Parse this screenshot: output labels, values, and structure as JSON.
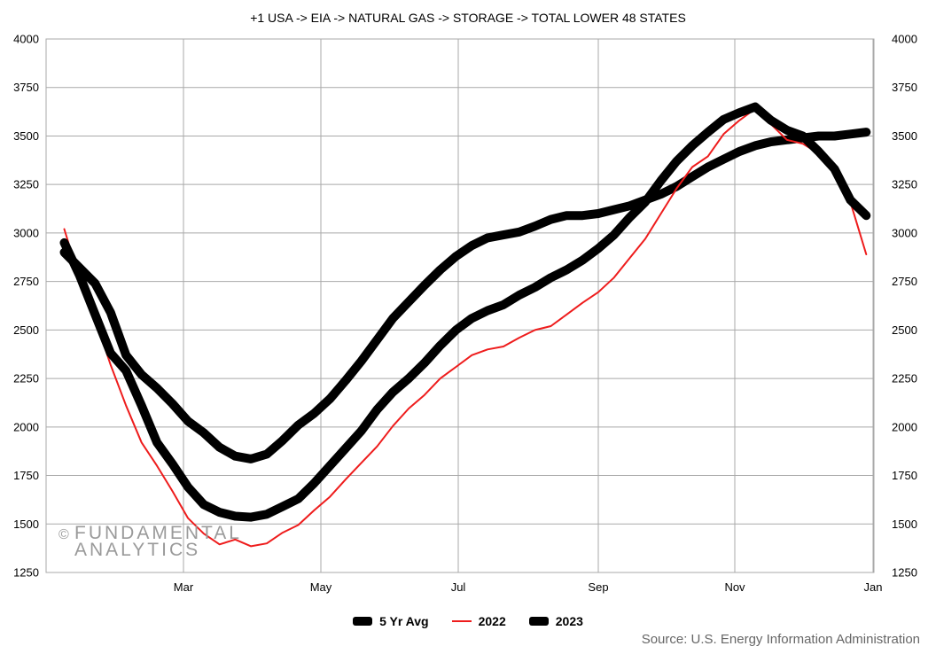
{
  "chart_data": {
    "type": "line",
    "title": "+1 USA -> EIA -> NATURAL GAS -> STORAGE -> TOTAL LOWER 48 STATES",
    "xlabel": "",
    "ylabel": "",
    "x_ticks": [
      "Mar",
      "May",
      "Jul",
      "Sep",
      "Nov",
      "Jan"
    ],
    "ylim": [
      1250,
      4000
    ],
    "y_ticks": [
      1250,
      1500,
      1750,
      2000,
      2250,
      2500,
      2750,
      3000,
      3250,
      3500,
      3750,
      4000
    ],
    "grid": true,
    "legend_position": "bottom",
    "series": [
      {
        "name": "5 Yr Avg",
        "color": "#000000",
        "style": "thick",
        "x": [
          "2023-01-06",
          "2023-01-13",
          "2023-01-20",
          "2023-01-27",
          "2023-02-03",
          "2023-02-10",
          "2023-02-17",
          "2023-02-24",
          "2023-03-03",
          "2023-03-10",
          "2023-03-17",
          "2023-03-24",
          "2023-03-31",
          "2023-04-07",
          "2023-04-14",
          "2023-04-21",
          "2023-04-28",
          "2023-05-05",
          "2023-05-12",
          "2023-05-19",
          "2023-05-26",
          "2023-06-02",
          "2023-06-09",
          "2023-06-16",
          "2023-06-23",
          "2023-06-30",
          "2023-07-07",
          "2023-07-14",
          "2023-07-21",
          "2023-07-28",
          "2023-08-04",
          "2023-08-11",
          "2023-08-18",
          "2023-08-25",
          "2023-09-01",
          "2023-09-08",
          "2023-09-15",
          "2023-09-22",
          "2023-09-29",
          "2023-10-06",
          "2023-10-13",
          "2023-10-20",
          "2023-10-27",
          "2023-11-03",
          "2023-11-10",
          "2023-11-17",
          "2023-11-24",
          "2023-12-01",
          "2023-12-08",
          "2023-12-15",
          "2023-12-22",
          "2023-12-29"
        ],
        "values": [
          2900,
          2820,
          2740,
          2590,
          2370,
          2270,
          2200,
          2120,
          2030,
          1970,
          1895,
          1850,
          1835,
          1860,
          1930,
          2010,
          2070,
          2145,
          2240,
          2340,
          2450,
          2560,
          2645,
          2730,
          2810,
          2880,
          2935,
          2975,
          2990,
          3005,
          3035,
          3070,
          3090,
          3090,
          3100,
          3120,
          3140,
          3170,
          3200,
          3240,
          3290,
          3340,
          3380,
          3420,
          3450,
          3470,
          3480,
          3490,
          3500,
          3500,
          3510,
          3520
        ]
      },
      {
        "name": "2022",
        "color": "#ee1c1c",
        "style": "thin",
        "x": [
          "2023-01-06",
          "2023-01-13",
          "2023-01-20",
          "2023-01-27",
          "2023-02-03",
          "2023-02-10",
          "2023-02-17",
          "2023-02-24",
          "2023-03-03",
          "2023-03-10",
          "2023-03-17",
          "2023-03-24",
          "2023-03-31",
          "2023-04-07",
          "2023-04-14",
          "2023-04-21",
          "2023-04-28",
          "2023-05-05",
          "2023-05-12",
          "2023-05-19",
          "2023-05-26",
          "2023-06-02",
          "2023-06-09",
          "2023-06-16",
          "2023-06-23",
          "2023-06-30",
          "2023-07-07",
          "2023-07-14",
          "2023-07-21",
          "2023-07-28",
          "2023-08-04",
          "2023-08-11",
          "2023-08-18",
          "2023-08-25",
          "2023-09-01",
          "2023-09-08",
          "2023-09-15",
          "2023-09-22",
          "2023-09-29",
          "2023-10-06",
          "2023-10-13",
          "2023-10-20",
          "2023-10-27",
          "2023-11-03",
          "2023-11-10",
          "2023-11-17",
          "2023-11-24",
          "2023-12-01",
          "2023-12-08",
          "2023-12-15",
          "2023-12-22",
          "2023-12-29"
        ],
        "values": [
          3020,
          2760,
          2560,
          2320,
          2110,
          1920,
          1800,
          1670,
          1530,
          1450,
          1395,
          1420,
          1385,
          1400,
          1455,
          1495,
          1570,
          1640,
          1730,
          1815,
          1900,
          2005,
          2095,
          2165,
          2250,
          2310,
          2370,
          2400,
          2415,
          2460,
          2500,
          2520,
          2580,
          2640,
          2695,
          2770,
          2870,
          2970,
          3100,
          3230,
          3340,
          3395,
          3510,
          3580,
          3640,
          3560,
          3480,
          3460,
          3410,
          3320,
          3160,
          2890
        ]
      },
      {
        "name": "2023",
        "color": "#000000",
        "style": "thick",
        "x": [
          "2023-01-06",
          "2023-01-13",
          "2023-01-20",
          "2023-01-27",
          "2023-02-03",
          "2023-02-10",
          "2023-02-17",
          "2023-02-24",
          "2023-03-03",
          "2023-03-10",
          "2023-03-17",
          "2023-03-24",
          "2023-03-31",
          "2023-04-07",
          "2023-04-14",
          "2023-04-21",
          "2023-04-28",
          "2023-05-05",
          "2023-05-12",
          "2023-05-19",
          "2023-05-26",
          "2023-06-02",
          "2023-06-09",
          "2023-06-16",
          "2023-06-23",
          "2023-06-30",
          "2023-07-07",
          "2023-07-14",
          "2023-07-21",
          "2023-07-28",
          "2023-08-04",
          "2023-08-11",
          "2023-08-18",
          "2023-08-25",
          "2023-09-01",
          "2023-09-08",
          "2023-09-15",
          "2023-09-22",
          "2023-09-29",
          "2023-10-06",
          "2023-10-13",
          "2023-10-20",
          "2023-10-27",
          "2023-11-03",
          "2023-11-10",
          "2023-11-17",
          "2023-11-24",
          "2023-12-01",
          "2023-12-08",
          "2023-12-15",
          "2023-12-22",
          "2023-12-29"
        ],
        "values": [
          2950,
          2780,
          2580,
          2380,
          2290,
          2110,
          1920,
          1810,
          1690,
          1600,
          1560,
          1540,
          1535,
          1550,
          1590,
          1630,
          1710,
          1800,
          1890,
          1980,
          2090,
          2180,
          2250,
          2330,
          2420,
          2500,
          2560,
          2600,
          2630,
          2680,
          2720,
          2770,
          2810,
          2860,
          2920,
          2990,
          3080,
          3160,
          3270,
          3370,
          3450,
          3520,
          3585,
          3620,
          3650,
          3580,
          3530,
          3500,
          3420,
          3330,
          3170,
          3090
        ]
      }
    ]
  },
  "watermark": {
    "symbol": "©",
    "line1": "FUNDAMENTAL",
    "line2": "ANALYTICS"
  },
  "source": "Source: U.S. Energy Information Administration"
}
